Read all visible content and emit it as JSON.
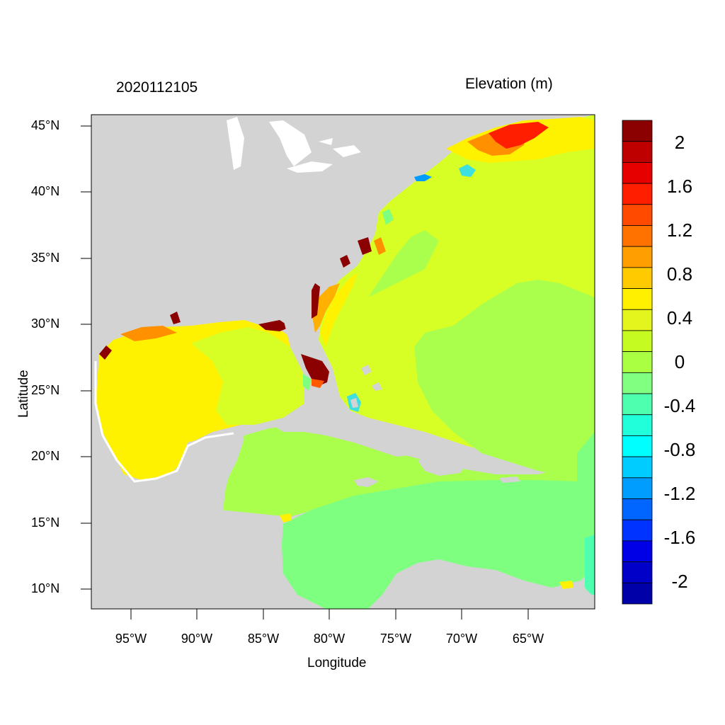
{
  "header": {
    "date": "2020112105",
    "variable": "Elevation (m)"
  },
  "axes": {
    "xlabel": "Longitude",
    "ylabel": "Latitude",
    "lat_ticks": [
      "45°N",
      "40°N",
      "35°N",
      "30°N",
      "25°N",
      "20°N",
      "15°N",
      "10°N"
    ],
    "lon_ticks": [
      "95°W",
      "90°W",
      "85°W",
      "80°W",
      "75°W",
      "70°W",
      "65°W"
    ]
  },
  "colorbar": {
    "labels": [
      "2",
      "1.6",
      "1.2",
      "0.8",
      "0.4",
      "0",
      "-0.4",
      "-0.8",
      "-1.2",
      "-1.6",
      "-2"
    ],
    "colors": [
      "#8b0000",
      "#be0000",
      "#e60000",
      "#ff1e00",
      "#ff4a00",
      "#ff7200",
      "#ff9e00",
      "#ffcb00",
      "#fff000",
      "#e4f51d",
      "#c6fb22",
      "#aaff42",
      "#80ff80",
      "#4dffae",
      "#20ffda",
      "#00ffff",
      "#00ccff",
      "#009dff",
      "#0066ff",
      "#0033ff",
      "#0000e6",
      "#0000c8",
      "#0000a8"
    ]
  },
  "map": {
    "land_color": "#d3d3d3",
    "colors": {
      "yellow": "#fff200",
      "yellow_green": "#d8ff25",
      "green": "#aaff4c",
      "teal_green": "#7fff7f",
      "dark_red": "#8b0000",
      "orange": "#ff9000",
      "cyan": "#3ddfdf"
    }
  }
}
